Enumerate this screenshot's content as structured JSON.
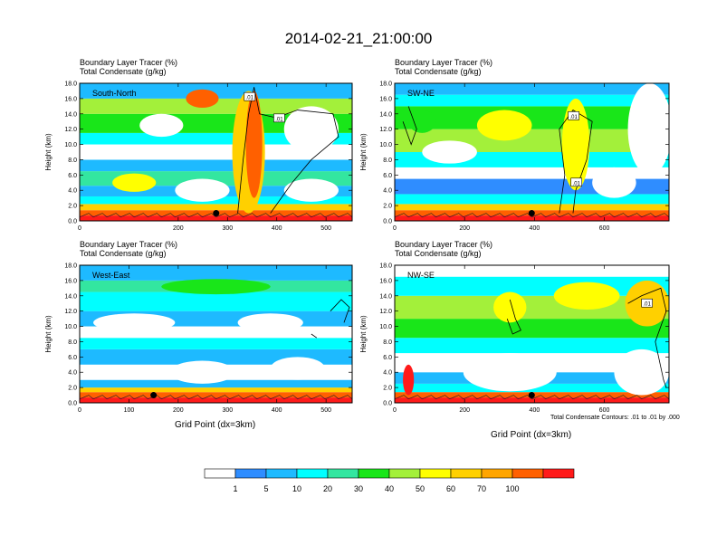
{
  "main_title": "2014-02-21_21:00:00",
  "panel_title_line1": "Boundary Layer Tracer   (%)",
  "panel_title_line2": "Total Condensate   (g/kg)",
  "xlabel": "Grid Point (dx=3km)",
  "contour_note": "Total Condensate Contours: .01 to .01 by .000",
  "colors": {
    "levels": [
      "#ffffff",
      "#2f8dff",
      "#1ebaff",
      "#00ffff",
      "#33e6a0",
      "#19e619",
      "#a3f03a",
      "#ffff00",
      "#ffd000",
      "#ffa500",
      "#ff6000",
      "#ff1a1a"
    ],
    "marker": "#000000"
  },
  "colorbar": {
    "labels": [
      "1",
      "5",
      "10",
      "20",
      "30",
      "40",
      "50",
      "60",
      "70",
      "100"
    ]
  },
  "chart_data": [
    {
      "type": "heatmap",
      "panel_label": "South-North",
      "xlabel": "",
      "ylabel": "Height (km)",
      "xlim": [
        0,
        553
      ],
      "ylim": [
        0,
        18
      ],
      "x_ticks": [
        "0",
        "200",
        "300",
        "400",
        "500"
      ],
      "x_tick_values": [
        0,
        200,
        300,
        400,
        500
      ],
      "y_ticks": [
        "0.0",
        "2.0",
        "4.0",
        "6.0",
        "8.0",
        "10.0",
        "12.0",
        "14.0",
        "16.0",
        "18.0"
      ],
      "contour_labels": [
        {
          "text": ".01",
          "x": 345,
          "y": 16.2
        },
        {
          "text": ".01",
          "x": 405,
          "y": 13.4
        }
      ],
      "marker": {
        "x": 277,
        "y": 1.0
      }
    },
    {
      "type": "heatmap",
      "panel_label": "SW-NE",
      "xlabel": "",
      "ylabel": "Height (km)",
      "xlim": [
        0,
        785
      ],
      "ylim": [
        0,
        18
      ],
      "x_ticks": [
        "0",
        "200",
        "400",
        "600"
      ],
      "x_tick_values": [
        0,
        200,
        400,
        600
      ],
      "y_ticks": [
        "0.0",
        "2.0",
        "4.0",
        "6.0",
        "8.0",
        "10.0",
        "12.0",
        "14.0",
        "16.0",
        "18.0"
      ],
      "contour_labels": [
        {
          "text": ".01",
          "x": 512,
          "y": 13.7
        },
        {
          "text": ".01",
          "x": 520,
          "y": 5.0
        }
      ],
      "marker": {
        "x": 392,
        "y": 1.0
      }
    },
    {
      "type": "heatmap",
      "panel_label": "West-East",
      "xlabel": "Grid Point (dx=3km)",
      "ylabel": "Height (km)",
      "xlim": [
        0,
        553
      ],
      "ylim": [
        0,
        18
      ],
      "x_ticks": [
        "0",
        "100",
        "200",
        "300",
        "400",
        "500"
      ],
      "x_tick_values": [
        0,
        100,
        200,
        300,
        400,
        500
      ],
      "y_ticks": [
        "0.0",
        "2.0",
        "4.0",
        "6.0",
        "8.0",
        "10.0",
        "12.0",
        "14.0",
        "16.0",
        "18.0"
      ],
      "contour_labels": [],
      "marker": {
        "x": 150,
        "y": 1.0
      }
    },
    {
      "type": "heatmap",
      "panel_label": "NW-SE",
      "xlabel": "Grid Point (dx=3km)",
      "ylabel": "Height (km)",
      "xlim": [
        0,
        785
      ],
      "ylim": [
        0,
        18
      ],
      "x_ticks": [
        "0",
        "200",
        "400",
        "600"
      ],
      "x_tick_values": [
        0,
        200,
        400,
        600
      ],
      "y_ticks": [
        "0.0",
        "2.0",
        "4.0",
        "6.0",
        "8.0",
        "10.0",
        "12.0",
        "14.0",
        "16.0",
        "18.0"
      ],
      "contour_labels": [
        {
          "text": ".01",
          "x": 722,
          "y": 13.0
        }
      ],
      "marker": {
        "x": 392,
        "y": 1.0
      }
    }
  ]
}
